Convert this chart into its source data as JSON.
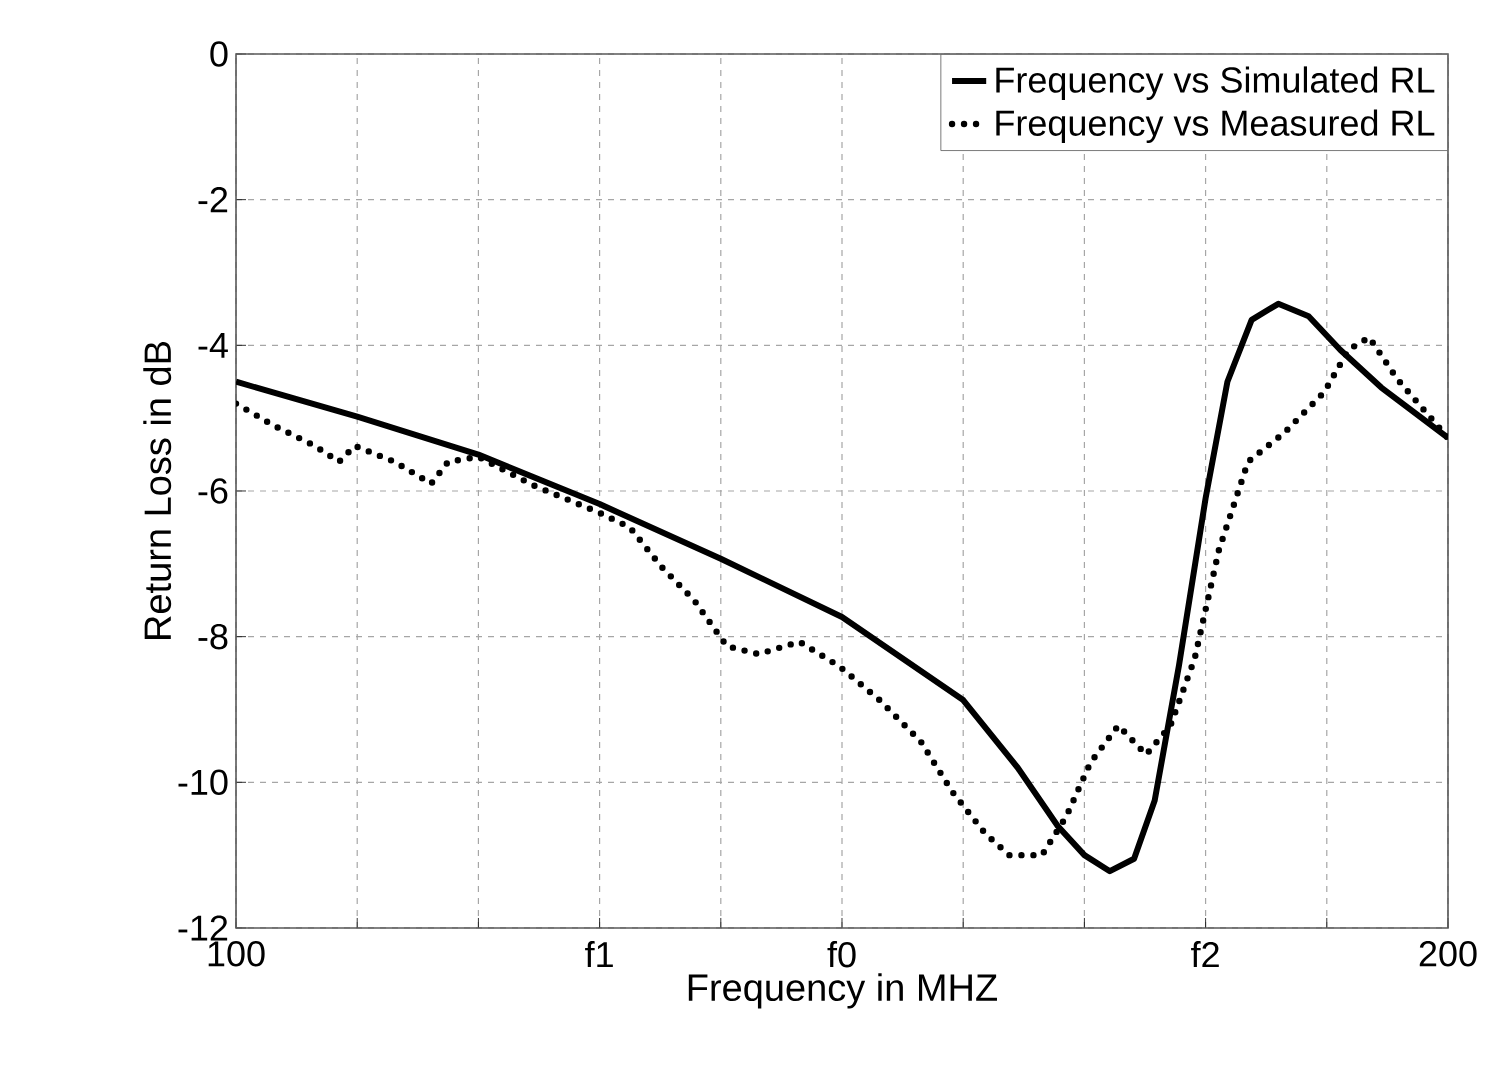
{
  "chart_data": {
    "type": "line",
    "xlabel": "Frequency in MHZ",
    "ylabel": "Return Loss in dB",
    "xlim": [
      100,
      200
    ],
    "ylim": [
      -12,
      0
    ],
    "xticks": [
      100,
      {
        "value": 110,
        "label": null
      },
      {
        "value": 120,
        "label": null
      },
      {
        "value": 130,
        "label": "f1"
      },
      {
        "value": 140,
        "label": null
      },
      {
        "value": 150,
        "label": "f0"
      },
      {
        "value": 160,
        "label": null
      },
      {
        "value": 170,
        "label": null
      },
      {
        "value": 180,
        "label": "f2"
      },
      {
        "value": 190,
        "label": null
      },
      200
    ],
    "yticks": [
      -12,
      -10,
      -8,
      -6,
      -4,
      -2,
      0
    ],
    "grid": true,
    "legend": "top right",
    "marker": "none",
    "series": [
      {
        "name": "Frequency vs Simulated RL",
        "color": "#000000",
        "line_style": "solid",
        "x": [
          100,
          110,
          120,
          130,
          140,
          150,
          155,
          160,
          164.5,
          167.8,
          170,
          172.1,
          174.1,
          175.8,
          177.8,
          180,
          181.8,
          183.8,
          186,
          188.5,
          191.1,
          194.5,
          200
        ],
        "values": [
          -4.5,
          -4.98,
          -5.5,
          -6.18,
          -6.93,
          -7.73,
          -8.3,
          -8.87,
          -9.8,
          -10.6,
          -11.0,
          -11.22,
          -11.05,
          -10.25,
          -8.4,
          -6.1,
          -4.5,
          -3.65,
          -3.43,
          -3.6,
          -4.06,
          -4.58,
          -5.27
        ]
      },
      {
        "name": "Frequency vs Measured RL",
        "color": "#000000",
        "line_style": "dotted",
        "x": [
          100,
          103.1,
          106.5,
          108.5,
          109.8,
          113.1,
          116.1,
          117.5,
          120,
          124.5,
          130,
          132.5,
          135.1,
          137.8,
          140.5,
          143.1,
          146.5,
          149.8,
          153.1,
          156.5,
          159.1,
          161.8,
          163.8,
          166.5,
          168.5,
          170.5,
          172.8,
          175.1,
          177.1,
          179.1,
          181.1,
          183.5,
          186.5,
          189.8,
          191.8,
          193.5,
          195.8,
          200
        ],
        "values": [
          -4.8,
          -5.1,
          -5.38,
          -5.6,
          -5.38,
          -5.6,
          -5.9,
          -5.6,
          -5.53,
          -5.92,
          -6.3,
          -6.5,
          -7.04,
          -7.5,
          -8.13,
          -8.24,
          -8.07,
          -8.41,
          -8.87,
          -9.44,
          -10.13,
          -10.7,
          -11.0,
          -11.0,
          -10.47,
          -9.73,
          -9.22,
          -9.62,
          -9.22,
          -8.3,
          -6.81,
          -5.6,
          -5.2,
          -4.64,
          -4.06,
          -3.89,
          -4.46,
          -5.27
        ]
      }
    ]
  }
}
